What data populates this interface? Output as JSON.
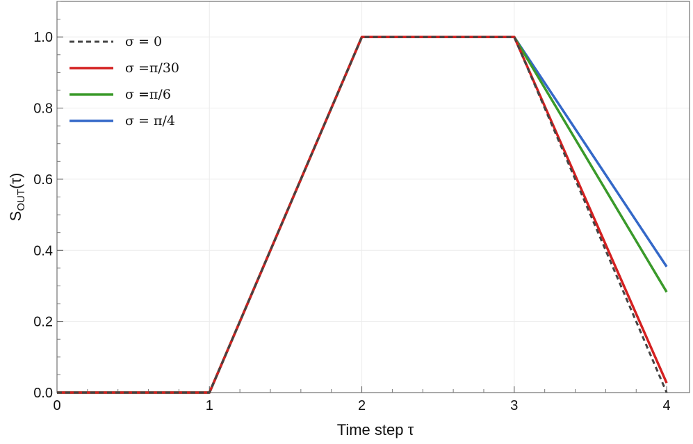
{
  "chart_data": {
    "type": "line",
    "title": "",
    "xlabel": "Time step τ",
    "ylabel_main": "S",
    "ylabel_sub": "OUT",
    "ylabel_tail": "(τ)",
    "xlim": [
      0,
      4.15
    ],
    "ylim": [
      0,
      1.1
    ],
    "x_ticks": [
      "0",
      "1",
      "2",
      "3",
      "4"
    ],
    "y_ticks": [
      "0.0",
      "0.2",
      "0.4",
      "0.6",
      "0.8",
      "1.0"
    ],
    "grid": true,
    "legend_position": "top-left",
    "series": [
      {
        "name": "σ = 0",
        "color": "#444444",
        "style": "dashed",
        "x": [
          0,
          1,
          2,
          3,
          4
        ],
        "y": [
          0,
          0,
          1,
          1,
          0
        ]
      },
      {
        "name": "σ =π/30",
        "color": "#d42020",
        "style": "solid",
        "x": [
          0,
          1,
          2,
          3,
          4
        ],
        "y": [
          0,
          0,
          1,
          1,
          0.027
        ]
      },
      {
        "name": "σ =π/6",
        "color": "#3a9a2a",
        "style": "solid",
        "x": [
          0,
          1,
          2,
          3,
          4
        ],
        "y": [
          0,
          0,
          1,
          1,
          0.283
        ]
      },
      {
        "name": "σ = π/4",
        "color": "#3468c8",
        "style": "solid",
        "x": [
          0,
          1,
          2,
          3,
          4
        ],
        "y": [
          0,
          0,
          1,
          1,
          0.354
        ]
      }
    ]
  }
}
